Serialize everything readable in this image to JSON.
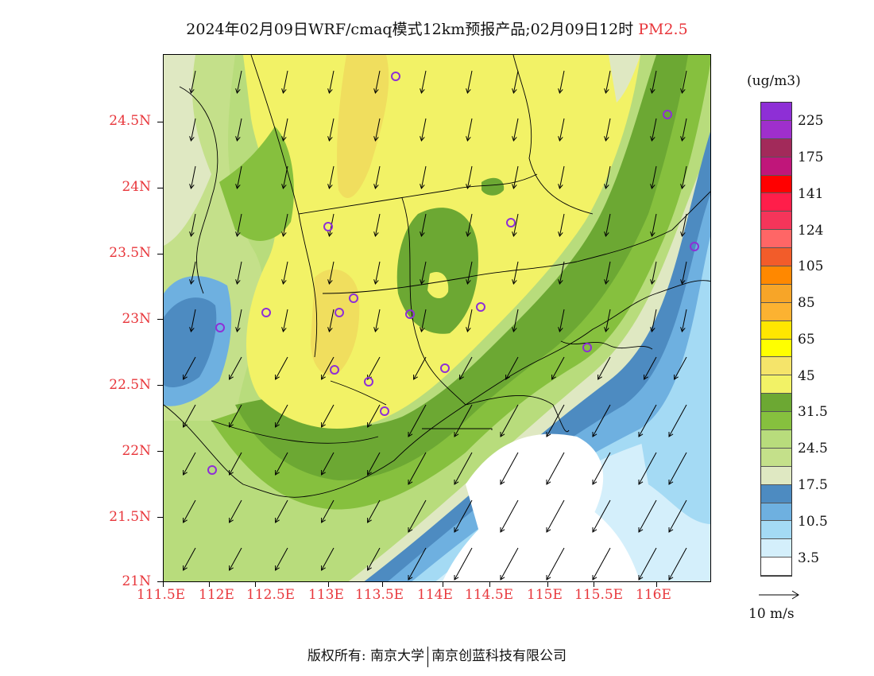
{
  "title": {
    "main": "2024年02月09日WRF/cmaq模式12km预报产品;02月09日12时",
    "variable": "PM2.5"
  },
  "axes": {
    "lat_labels": [
      "24.5N",
      "24N",
      "23.5N",
      "23N",
      "22.5N",
      "22N",
      "21.5N",
      "21N"
    ],
    "lon_labels": [
      "111.5E",
      "112E",
      "112.5E",
      "113E",
      "113.5E",
      "114E",
      "114.5E",
      "115E",
      "115.5E",
      "116E"
    ]
  },
  "legend": {
    "unit": "(ug/m3)",
    "colors": [
      "#8e2fd6",
      "#9f2fcc",
      "#a22a5a",
      "#c0167a",
      "#ff0000",
      "#ff1e4a",
      "#f5355a",
      "#ff6666",
      "#f25c2a",
      "#ff8800",
      "#f7a528",
      "#fcb231",
      "#ffe600",
      "#ffff00",
      "#f5e46a",
      "#f2f266",
      "#6ca833",
      "#86c03e",
      "#b8dc7c",
      "#c4e08a",
      "#dfe8c2",
      "#4d8bc1",
      "#6eb0e0",
      "#a4daf4",
      "#d4effb",
      "#ffffff"
    ],
    "labels": [
      "225",
      "175",
      "141",
      "124",
      "105",
      "85",
      "65",
      "45",
      "31.5",
      "24.5",
      "17.5",
      "10.5",
      "3.5"
    ]
  },
  "wind_reference": {
    "label": "10 m/s"
  },
  "footer": {
    "left": "版权所有: 南京大学",
    "right": "南京创蓝科技有限公司"
  },
  "map_colors": {
    "yellow": "#f2f266",
    "yellow_dark": "#f0de5e",
    "green_dark": "#6ca833",
    "green_mid": "#86c03e",
    "green_light": "#b8dc7c",
    "green_pale": "#dfe8c2",
    "blue_dark": "#4d8bc1",
    "blue_mid": "#6eb0e0",
    "blue_light": "#a4daf4",
    "blue_pale": "#d4effb",
    "sea_white": "#ffffff"
  }
}
